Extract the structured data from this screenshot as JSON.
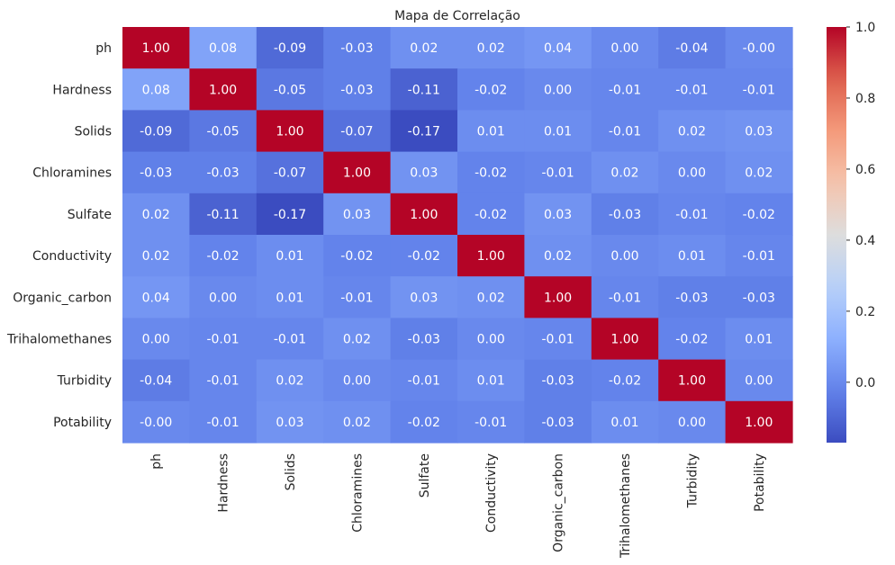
{
  "chart_data": {
    "type": "heatmap",
    "title": "Mapa de Correlação",
    "rows": [
      "ph",
      "Hardness",
      "Solids",
      "Chloramines",
      "Sulfate",
      "Conductivity",
      "Organic_carbon",
      "Trihalomethanes",
      "Turbidity",
      "Potability"
    ],
    "columns": [
      "ph",
      "Hardness",
      "Solids",
      "Chloramines",
      "Sulfate",
      "Conductivity",
      "Organic_carbon",
      "Trihalomethanes",
      "Turbidity",
      "Potability"
    ],
    "values": [
      [
        1.0,
        0.08,
        -0.09,
        -0.03,
        0.02,
        0.02,
        0.04,
        0.0,
        -0.04,
        -0.0
      ],
      [
        0.08,
        1.0,
        -0.05,
        -0.03,
        -0.11,
        -0.02,
        0.0,
        -0.01,
        -0.01,
        -0.01
      ],
      [
        -0.09,
        -0.05,
        1.0,
        -0.07,
        -0.17,
        0.01,
        0.01,
        -0.01,
        0.02,
        0.03
      ],
      [
        -0.03,
        -0.03,
        -0.07,
        1.0,
        0.03,
        -0.02,
        -0.01,
        0.02,
        0.0,
        0.02
      ],
      [
        0.02,
        -0.11,
        -0.17,
        0.03,
        1.0,
        -0.02,
        0.03,
        -0.03,
        -0.01,
        -0.02
      ],
      [
        0.02,
        -0.02,
        0.01,
        -0.02,
        -0.02,
        1.0,
        0.02,
        0.0,
        0.01,
        -0.01
      ],
      [
        0.04,
        0.0,
        0.01,
        -0.01,
        0.03,
        0.02,
        1.0,
        -0.01,
        -0.03,
        -0.03
      ],
      [
        0.0,
        -0.01,
        -0.01,
        0.02,
        -0.03,
        0.0,
        -0.01,
        1.0,
        -0.02,
        0.01
      ],
      [
        -0.04,
        -0.01,
        0.02,
        0.0,
        -0.01,
        0.01,
        -0.03,
        -0.02,
        1.0,
        0.0
      ],
      [
        -0.0,
        -0.01,
        0.03,
        0.02,
        -0.02,
        -0.01,
        -0.03,
        0.01,
        0.0,
        1.0
      ]
    ],
    "value_labels": [
      [
        "1.00",
        "0.08",
        "-0.09",
        "-0.03",
        "0.02",
        "0.02",
        "0.04",
        "0.00",
        "-0.04",
        "-0.00"
      ],
      [
        "0.08",
        "1.00",
        "-0.05",
        "-0.03",
        "-0.11",
        "-0.02",
        "0.00",
        "-0.01",
        "-0.01",
        "-0.01"
      ],
      [
        "-0.09",
        "-0.05",
        "1.00",
        "-0.07",
        "-0.17",
        "0.01",
        "0.01",
        "-0.01",
        "0.02",
        "0.03"
      ],
      [
        "-0.03",
        "-0.03",
        "-0.07",
        "1.00",
        "0.03",
        "-0.02",
        "-0.01",
        "0.02",
        "0.00",
        "0.02"
      ],
      [
        "0.02",
        "-0.11",
        "-0.17",
        "0.03",
        "1.00",
        "-0.02",
        "0.03",
        "-0.03",
        "-0.01",
        "-0.02"
      ],
      [
        "0.02",
        "-0.02",
        "0.01",
        "-0.02",
        "-0.02",
        "1.00",
        "0.02",
        "0.00",
        "0.01",
        "-0.01"
      ],
      [
        "0.04",
        "0.00",
        "0.01",
        "-0.01",
        "0.03",
        "0.02",
        "1.00",
        "-0.01",
        "-0.03",
        "-0.03"
      ],
      [
        "0.00",
        "-0.01",
        "-0.01",
        "0.02",
        "-0.03",
        "0.00",
        "-0.01",
        "1.00",
        "-0.02",
        "0.01"
      ],
      [
        "-0.04",
        "-0.01",
        "0.02",
        "0.00",
        "-0.01",
        "0.01",
        "-0.03",
        "-0.02",
        "1.00",
        "0.00"
      ],
      [
        "-0.00",
        "-0.01",
        "0.03",
        "0.02",
        "-0.02",
        "-0.01",
        "-0.03",
        "0.01",
        "0.00",
        "1.00"
      ]
    ],
    "colormap": "coolwarm",
    "color_range": [
      -0.17,
      1.0
    ],
    "colorbar": {
      "ticks": [
        0.0,
        0.2,
        0.4,
        0.6,
        0.8,
        1.0
      ],
      "tick_labels": [
        "0.0",
        "0.2",
        "0.4",
        "0.6",
        "0.8",
        "1.0"
      ]
    },
    "xlabel": "",
    "ylabel": "",
    "x_tick_rotation": "vertical",
    "grid": false,
    "colors": {
      "low": "#3b4cc0",
      "mid": "#dddddd",
      "high": "#b40426",
      "label_dark": "#262626",
      "annot_light": "#ffffff"
    }
  }
}
